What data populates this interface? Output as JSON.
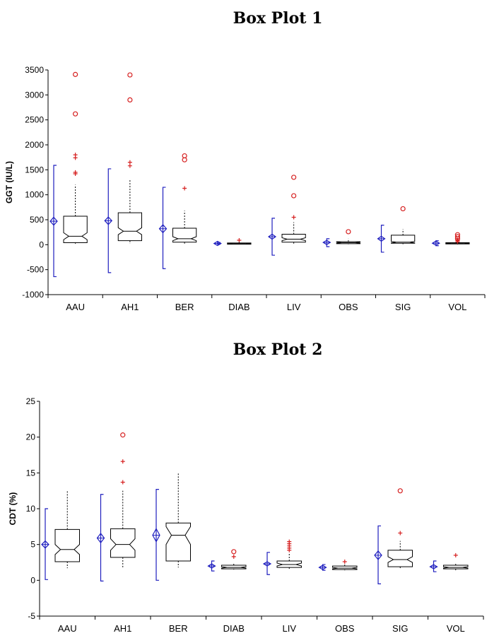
{
  "chart_data": [
    {
      "type": "box",
      "title": "Box Plot 1",
      "ylabel": "GGT (IU/L)",
      "ylim": [
        -1000,
        3500
      ],
      "yticks": [
        -1000,
        -500,
        0,
        500,
        1000,
        1500,
        2000,
        2500,
        3000,
        3500
      ],
      "categories": [
        "AAU",
        "AH1",
        "BER",
        "DIAB",
        "LIV",
        "OBS",
        "SIG",
        "VOL"
      ],
      "grid": false,
      "boxes": [
        {
          "name": "AAU",
          "q1": 40,
          "median": 170,
          "q3": 570,
          "whisker_low": 20,
          "whisker_high": 1200,
          "notch_low": 100,
          "notch_high": 240,
          "mean": 470,
          "sd_low": -640,
          "sd_high": 1590,
          "ci_low": 400,
          "ci_high": 560,
          "outliers_plus": [
            1420,
            1450,
            1740,
            1800
          ],
          "outliers_circle": [
            2620,
            3410
          ]
        },
        {
          "name": "AH1",
          "q1": 80,
          "median": 270,
          "q3": 640,
          "whisker_low": 20,
          "whisker_high": 1300,
          "notch_low": 200,
          "notch_high": 340,
          "mean": 480,
          "sd_low": -560,
          "sd_high": 1520,
          "ci_low": 410,
          "ci_high": 560,
          "outliers_plus": [
            1580,
            1650
          ],
          "outliers_circle": [
            2900,
            3400
          ]
        },
        {
          "name": "BER",
          "q1": 50,
          "median": 120,
          "q3": 330,
          "whisker_low": 20,
          "whisker_high": 680,
          "notch_low": 80,
          "notch_high": 160,
          "mean": 320,
          "sd_low": -480,
          "sd_high": 1150,
          "ci_low": 240,
          "ci_high": 400,
          "outliers_plus": [
            1130
          ],
          "outliers_circle": [
            1700,
            1780
          ]
        },
        {
          "name": "DIAB",
          "q1": 10,
          "median": 20,
          "q3": 35,
          "whisker_low": 5,
          "whisker_high": 60,
          "notch_low": 15,
          "notch_high": 25,
          "mean": 25,
          "sd_low": 10,
          "sd_high": 45,
          "ci_low": 20,
          "ci_high": 30,
          "outliers_plus": [
            90
          ],
          "outliers_circle": []
        },
        {
          "name": "LIV",
          "q1": 50,
          "median": 110,
          "q3": 210,
          "whisker_low": 20,
          "whisker_high": 450,
          "notch_low": 80,
          "notch_high": 140,
          "mean": 160,
          "sd_low": -210,
          "sd_high": 530,
          "ci_low": 110,
          "ci_high": 210,
          "outliers_plus": [
            550
          ],
          "outliers_circle": [
            980,
            1350
          ]
        },
        {
          "name": "OBS",
          "q1": 20,
          "median": 40,
          "q3": 60,
          "whisker_low": 10,
          "whisker_high": 120,
          "notch_low": 30,
          "notch_high": 50,
          "mean": 45,
          "sd_low": -40,
          "sd_high": 120,
          "ci_low": 20,
          "ci_high": 70,
          "outliers_plus": [],
          "outliers_circle": [
            260
          ]
        },
        {
          "name": "SIG",
          "q1": 30,
          "median": 50,
          "q3": 190,
          "whisker_low": 10,
          "whisker_high": 310,
          "notch_low": 35,
          "notch_high": 65,
          "mean": 120,
          "sd_low": -150,
          "sd_high": 390,
          "ci_low": 70,
          "ci_high": 170,
          "outliers_plus": [],
          "outliers_circle": [
            720
          ]
        },
        {
          "name": "VOL",
          "q1": 15,
          "median": 25,
          "q3": 40,
          "whisker_low": 5,
          "whisker_high": 70,
          "notch_low": 20,
          "notch_high": 30,
          "mean": 30,
          "sd_low": -20,
          "sd_high": 80,
          "ci_low": 15,
          "ci_high": 45,
          "outliers_plus": [
            60,
            80,
            100
          ],
          "outliers_circle": [
            120,
            160,
            200
          ]
        }
      ]
    },
    {
      "type": "box",
      "title": "Box Plot 2",
      "ylabel": "CDT (%)",
      "ylim": [
        -5,
        25
      ],
      "yticks": [
        -5,
        0,
        5,
        10,
        15,
        20,
        25
      ],
      "categories": [
        "AAU",
        "AH1",
        "BER",
        "DIAB",
        "LIV",
        "OBS",
        "SIG",
        "VOL"
      ],
      "grid": false,
      "boxes": [
        {
          "name": "AAU",
          "q1": 2.6,
          "median": 4.3,
          "q3": 7.1,
          "whisker_low": 1.7,
          "whisker_high": 12.5,
          "notch_low": 3.6,
          "notch_high": 5.0,
          "mean": 5.0,
          "sd_low": 0.1,
          "sd_high": 10.0,
          "ci_low": 4.5,
          "ci_high": 5.5,
          "outliers_plus": [],
          "outliers_circle": []
        },
        {
          "name": "AH1",
          "q1": 3.2,
          "median": 5.0,
          "q3": 7.2,
          "whisker_low": 1.7,
          "whisker_high": 12.5,
          "notch_low": 4.2,
          "notch_high": 5.8,
          "mean": 5.9,
          "sd_low": -0.1,
          "sd_high": 12.0,
          "ci_low": 5.3,
          "ci_high": 6.6,
          "outliers_plus": [
            13.7,
            16.6
          ],
          "outliers_circle": [
            20.3
          ]
        },
        {
          "name": "BER",
          "q1": 2.7,
          "median": 6.3,
          "q3": 8.0,
          "whisker_low": 1.8,
          "whisker_high": 15.0,
          "notch_low": 5.0,
          "notch_high": 7.5,
          "mean": 6.3,
          "sd_low": 0.0,
          "sd_high": 12.7,
          "ci_low": 5.4,
          "ci_high": 7.2,
          "outliers_plus": [],
          "outliers_circle": []
        },
        {
          "name": "DIAB",
          "q1": 1.6,
          "median": 1.8,
          "q3": 2.1,
          "whisker_low": 1.5,
          "whisker_high": 2.5,
          "notch_low": 1.7,
          "notch_high": 1.9,
          "mean": 2.0,
          "sd_low": 1.3,
          "sd_high": 2.7,
          "ci_low": 1.8,
          "ci_high": 2.2,
          "outliers_plus": [
            3.3
          ],
          "outliers_circle": [
            4.0
          ]
        },
        {
          "name": "LIV",
          "q1": 1.8,
          "median": 2.2,
          "q3": 2.7,
          "whisker_low": 1.5,
          "whisker_high": 3.8,
          "notch_low": 2.0,
          "notch_high": 2.4,
          "mean": 2.3,
          "sd_low": 0.8,
          "sd_high": 3.9,
          "ci_low": 2.1,
          "ci_high": 2.5,
          "outliers_plus": [
            4.2,
            4.5,
            4.8,
            5.1,
            5.4
          ],
          "outliers_circle": []
        },
        {
          "name": "OBS",
          "q1": 1.5,
          "median": 1.7,
          "q3": 2.0,
          "whisker_low": 1.4,
          "whisker_high": 2.3,
          "notch_low": 1.6,
          "notch_high": 1.8,
          "mean": 1.8,
          "sd_low": 1.4,
          "sd_high": 2.2,
          "ci_low": 1.6,
          "ci_high": 2.0,
          "outliers_plus": [
            2.6
          ],
          "outliers_circle": []
        },
        {
          "name": "SIG",
          "q1": 1.9,
          "median": 2.9,
          "q3": 4.2,
          "whisker_low": 1.6,
          "whisker_high": 5.5,
          "notch_low": 2.5,
          "notch_high": 3.3,
          "mean": 3.5,
          "sd_low": -0.5,
          "sd_high": 7.6,
          "ci_low": 2.9,
          "ci_high": 4.1,
          "outliers_plus": [
            6.6
          ],
          "outliers_circle": [
            12.5
          ]
        },
        {
          "name": "VOL",
          "q1": 1.6,
          "median": 1.8,
          "q3": 2.1,
          "whisker_low": 1.4,
          "whisker_high": 2.4,
          "notch_low": 1.7,
          "notch_high": 1.9,
          "mean": 1.9,
          "sd_low": 1.2,
          "sd_high": 2.7,
          "ci_low": 1.7,
          "ci_high": 2.1,
          "outliers_plus": [
            3.5
          ],
          "outliers_circle": []
        }
      ]
    }
  ],
  "colors": {
    "box": "#000000",
    "mean_marker": "#1f1fbf",
    "outlier": "#d62020",
    "axis": "#000000"
  }
}
